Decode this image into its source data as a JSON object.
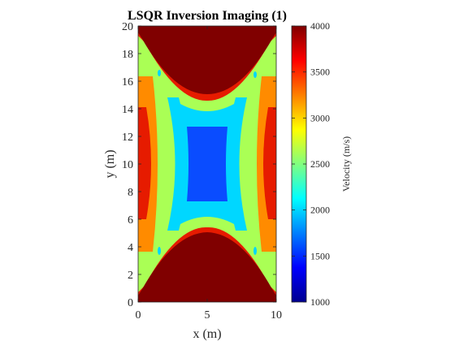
{
  "chart_data": {
    "type": "heatmap",
    "title": "LSQR Inversion Imaging (1)",
    "xlabel": "x (m)",
    "ylabel": "y (m)",
    "xlim": [
      0,
      10
    ],
    "ylim": [
      0,
      20
    ],
    "xticks": [
      0,
      5,
      10
    ],
    "yticks": [
      0,
      2,
      4,
      6,
      8,
      10,
      12,
      14,
      16,
      18,
      20
    ],
    "colorbar": {
      "label": "Velocity (m/s)",
      "limits": [
        1000,
        4000
      ],
      "ticks": [
        1000,
        1500,
        2000,
        2500,
        3000,
        3500,
        4000
      ],
      "colormap": "jet"
    },
    "contour_levels": [
      {
        "min": 1250,
        "max": 1750,
        "color": "#0a4cff"
      },
      {
        "min": 2000,
        "max": 2250,
        "color": "#00d7ff"
      },
      {
        "min": 2500,
        "max": 2750,
        "color": "#aaff55"
      },
      {
        "min": 3000,
        "max": 3250,
        "color": "#ff8b00"
      },
      {
        "min": 3500,
        "max": 3750,
        "color": "#e61b00"
      },
      {
        "min": 3750,
        "max": 4000,
        "color": "#800000"
      }
    ],
    "regions": [
      {
        "name": "top-high-velocity-zone",
        "velocity": 4000
      },
      {
        "name": "bottom-high-velocity-zone",
        "velocity": 4000
      },
      {
        "name": "left-red-zone",
        "velocity": 3600
      },
      {
        "name": "right-red-zone",
        "velocity": 3600
      },
      {
        "name": "left-orange-band",
        "velocity": 3100
      },
      {
        "name": "right-orange-band",
        "velocity": 3100
      },
      {
        "name": "cyan-cross-zone",
        "velocity": 2100
      },
      {
        "name": "blue-core-zone",
        "velocity": 1500
      }
    ]
  }
}
